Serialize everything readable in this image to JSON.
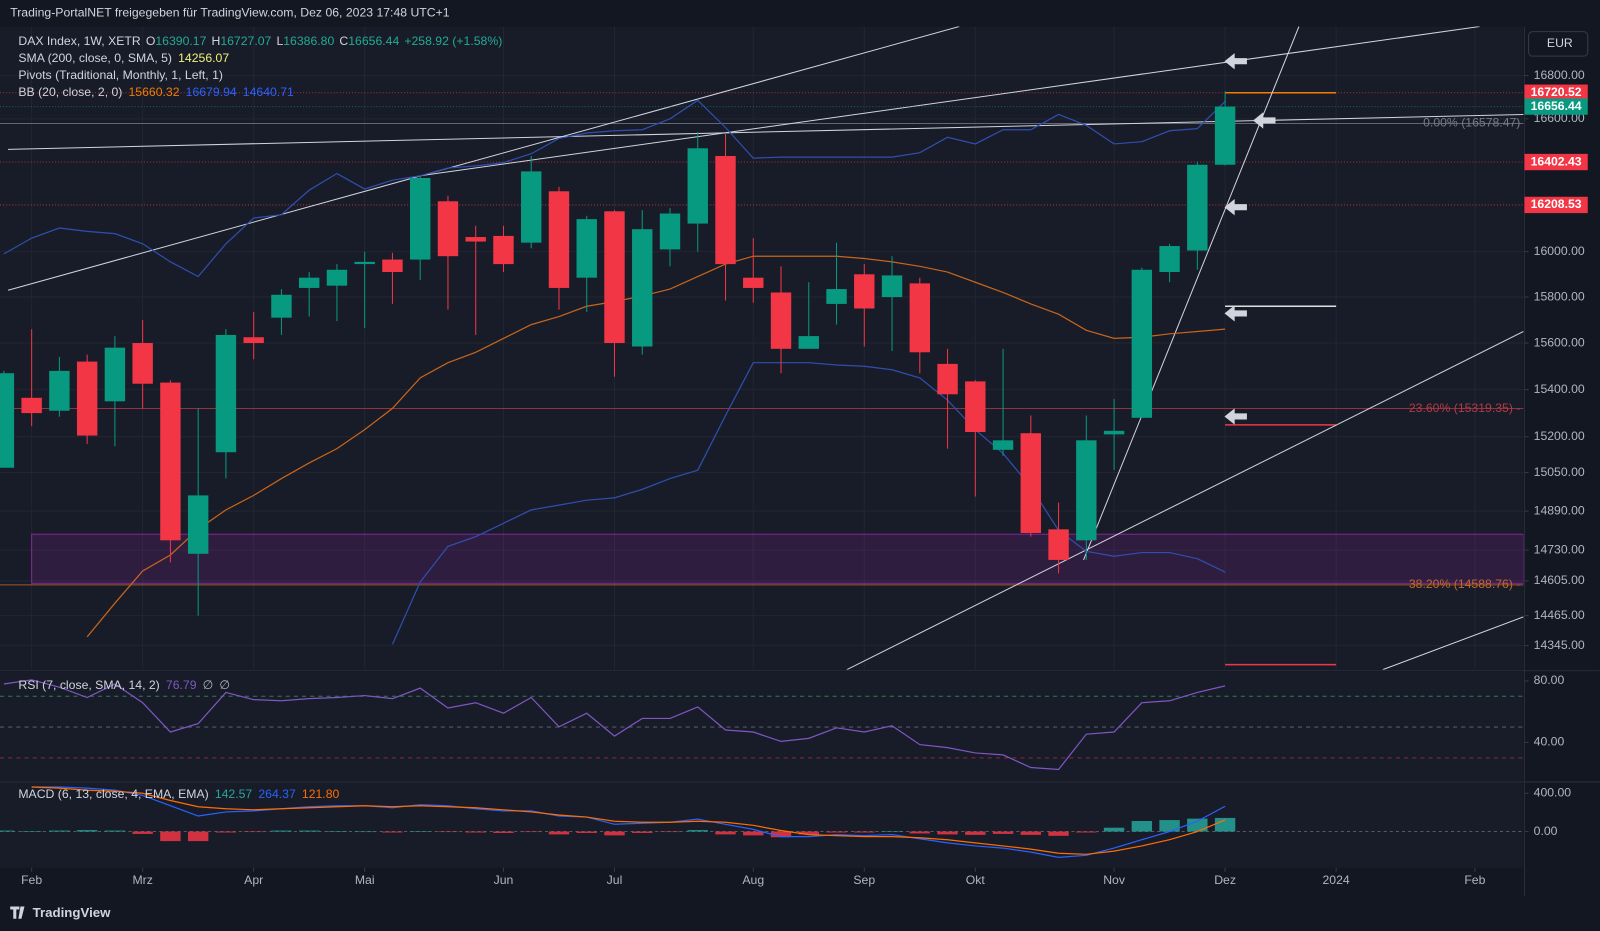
{
  "header": {
    "title": "Trading-PortalNET freigegeben für TradingView.com, Dez 06, 2023 17:48 UTC+1",
    "currency": "EUR",
    "logo": "TradingView"
  },
  "chart_data": [
    {
      "type": "candlestick",
      "symbol": "DAX Index, 1W, XETR",
      "ohlc_legend": [
        {
          "key": "O",
          "value": "16390.17"
        },
        {
          "key": "H",
          "value": "16727.07"
        },
        {
          "key": "L",
          "value": "16386.80"
        },
        {
          "key": "C",
          "value": "16656.44"
        }
      ],
      "change": "+258.92 (+1.58%)",
      "log_scale": true,
      "grid": true,
      "up_color": "#089981",
      "down_color": "#f23645",
      "xlim": [
        -0.14,
        54.75
      ],
      "xticks": [
        {
          "value": 1,
          "label": "Feb"
        },
        {
          "value": 5,
          "label": "Mrz"
        },
        {
          "value": 9,
          "label": "Apr"
        },
        {
          "value": 13,
          "label": "Mai"
        },
        {
          "value": 18,
          "label": "Jun"
        },
        {
          "value": 22,
          "label": "Jul"
        },
        {
          "value": 27,
          "label": "Aug"
        },
        {
          "value": 31,
          "label": "Sep"
        },
        {
          "value": 35,
          "label": "Okt"
        },
        {
          "value": 40,
          "label": "Nov"
        },
        {
          "value": 44,
          "label": "Dez"
        },
        {
          "value": 48,
          "label": "2024"
        },
        {
          "value": 53,
          "label": "Feb"
        }
      ],
      "ylim": [
        14250,
        17030
      ],
      "yticks": [
        {
          "value": 16800,
          "label": "16800.00"
        },
        {
          "value": 16600,
          "label": "16600.00"
        },
        {
          "value": 16000,
          "label": "16000.00"
        },
        {
          "value": 15800,
          "label": "15800.00"
        },
        {
          "value": 15600,
          "label": "15600.00"
        },
        {
          "value": 15400,
          "label": "15400.00"
        },
        {
          "value": 15200,
          "label": "15200.00"
        },
        {
          "value": 15050,
          "label": "15050.00"
        },
        {
          "value": 14890,
          "label": "14890.00"
        },
        {
          "value": 14730,
          "label": "14730.00"
        },
        {
          "value": 14605,
          "label": "14605.00"
        },
        {
          "value": 14465,
          "label": "14465.00"
        },
        {
          "value": 14345,
          "label": "14345.00"
        }
      ],
      "open": [
        15070,
        15365,
        15310,
        15520,
        15350,
        15600,
        15430,
        14715,
        15135,
        15625,
        15710,
        15840,
        15850,
        15945,
        15965,
        15965,
        16225,
        16065,
        16070,
        16040,
        16270,
        15885,
        16180,
        15585,
        16010,
        16125,
        16430,
        15885,
        15820,
        15575,
        15770,
        15900,
        15800,
        15860,
        15510,
        15435,
        15145,
        15215,
        14815,
        14770,
        15210,
        15280,
        15910,
        16005,
        16390.17
      ],
      "high": [
        15480,
        15660,
        15540,
        15550,
        15630,
        15700,
        15440,
        15320,
        15660,
        15735,
        15835,
        15910,
        15945,
        16000,
        15995,
        16340,
        16250,
        16115,
        16115,
        16430,
        16290,
        16160,
        16185,
        16185,
        16195,
        16540,
        16530,
        16060,
        15935,
        15865,
        16040,
        15945,
        15980,
        15885,
        15575,
        15440,
        15575,
        15290,
        14925,
        15290,
        15360,
        15930,
        16035,
        16405,
        16727.07
      ],
      "low": [
        15070,
        15245,
        15285,
        15170,
        15160,
        15320,
        14680,
        14465,
        15025,
        15530,
        15635,
        15715,
        15695,
        15665,
        15770,
        15875,
        15745,
        15635,
        15910,
        16015,
        15745,
        15735,
        15455,
        15550,
        15935,
        16000,
        15785,
        15775,
        15470,
        15575,
        15680,
        15585,
        15565,
        15470,
        15150,
        14950,
        15120,
        14785,
        14635,
        14690,
        15060,
        15280,
        15865,
        15920,
        16386.8
      ],
      "close": [
        15470,
        15300,
        15480,
        15205,
        15580,
        15425,
        14770,
        14955,
        15635,
        15600,
        15810,
        15885,
        15920,
        15955,
        15910,
        16330,
        15980,
        16045,
        15945,
        16360,
        15840,
        16145,
        15600,
        16100,
        16170,
        16465,
        15945,
        15840,
        15575,
        15630,
        15835,
        15750,
        15895,
        15560,
        15380,
        15220,
        15185,
        14800,
        14690,
        15185,
        15225,
        15920,
        16025,
        16390,
        16656.44
      ],
      "indicators": [
        {
          "name": "SMA (200, close, 0, SMA, 5)",
          "legend_values": [
            {
              "text": "14256.07",
              "color": "#f0f07a"
            }
          ],
          "lines": []
        },
        {
          "name": "Pivots (Traditional, Monthly, 1, Left, 1)",
          "legend_values": [],
          "lines": []
        },
        {
          "name": "BB (20, close, 2, 0)",
          "legend_values": [
            {
              "text": "15660.32",
              "color": "#f57c00"
            },
            {
              "text": "16679.94",
              "color": "#2962ff"
            },
            {
              "text": "14640.71",
              "color": "#2962ff"
            }
          ],
          "lines": [
            {
              "color": "#c8651b",
              "values": [
                null,
                null,
                null,
                14380,
                14515,
                14645,
                14710,
                14815,
                14895,
                14955,
                15025,
                15090,
                15150,
                15230,
                15320,
                15450,
                15515,
                15560,
                15620,
                15680,
                15715,
                15760,
                15780,
                15805,
                15835,
                15890,
                15945,
                15980,
                15980,
                15980,
                15980,
                15970,
                15955,
                15935,
                15910,
                15865,
                15820,
                15770,
                15725,
                15655,
                15620,
                15625,
                15640,
                15650,
                15660.32
              ]
            },
            {
              "color": "#2f4fb0",
              "values": [
                15990,
                16060,
                16105,
                16090,
                16080,
                16035,
                15955,
                15890,
                16035,
                16150,
                16165,
                16275,
                16350,
                16280,
                16320,
                16340,
                16375,
                16385,
                16400,
                16440,
                16510,
                16535,
                16545,
                16550,
                16600,
                16685,
                16560,
                16420,
                16425,
                16425,
                16425,
                16425,
                16425,
                16445,
                16515,
                16485,
                16550,
                16550,
                16620,
                16570,
                16485,
                16495,
                16545,
                16555,
                16679.94
              ]
            },
            {
              "color": "#2f4fb0",
              "values": [
                null,
                null,
                null,
                null,
                null,
                null,
                null,
                null,
                null,
                null,
                null,
                null,
                null,
                null,
                14350,
                14600,
                14745,
                14785,
                14840,
                14895,
                14915,
                14935,
                14945,
                14980,
                15025,
                15060,
                15290,
                15515,
                15515,
                15515,
                15505,
                15500,
                15485,
                15450,
                15355,
                15230,
                15130,
                14990,
                14810,
                14725,
                14705,
                14720,
                14720,
                14695,
                14640.71
              ]
            }
          ]
        }
      ],
      "levels": [
        {
          "value": 16720.52,
          "color": "#f23645"
        },
        {
          "value": 16402.43,
          "color": "#f23645"
        },
        {
          "value": 16208.53,
          "color": "#f23645"
        }
      ],
      "pivot_segments": [
        {
          "value": 16720.52,
          "color": "#f57c00"
        },
        {
          "value": 15760,
          "color": "#e0e0e0"
        },
        {
          "value": 15250,
          "color": "#f23645"
        },
        {
          "value": 14270,
          "color": "#f23645"
        }
      ],
      "fib_levels": [
        {
          "value": 16578.47,
          "label": "0.00% (16578.47)",
          "color": "#787b86"
        },
        {
          "value": 15319.35,
          "label": "23.60% (15319.35) -",
          "color": "#b23a44"
        },
        {
          "value": 14588.76,
          "label": "38.20% (14588.76) -",
          "color": "#c0692a"
        }
      ],
      "zone": {
        "low": 14595,
        "high": 14795,
        "start": 1,
        "color": "#9c27b0"
      },
      "trendlines": [
        [
          [
            0.15,
            15830
          ],
          [
            34.42,
            17030
          ]
        ],
        [
          [
            15,
            16340
          ],
          [
            53.17,
            17030
          ]
        ],
        [
          [
            0.15,
            16460
          ],
          [
            54.75,
            16620
          ]
        ],
        [
          [
            38.9,
            14690
          ],
          [
            46.66,
            17030
          ]
        ],
        [
          [
            30.37,
            14250
          ],
          [
            54.75,
            15650
          ]
        ],
        [
          [
            49.68,
            14250
          ],
          [
            54.75,
            14460
          ]
        ]
      ]
    },
    {
      "type": "line",
      "title": "RSI (7, close, SMA, 14, 2)",
      "legend_values": [
        {
          "text": "76.79",
          "color": "#7e57c2"
        },
        {
          "text": "∅",
          "color": "#b2b5be"
        },
        {
          "text": "∅",
          "color": "#b2b5be"
        }
      ],
      "color": "#7e57c2",
      "ylim": [
        15,
        86
      ],
      "yticks": [
        {
          "value": 80,
          "label": "80.00"
        },
        {
          "value": 40,
          "label": "40.00"
        }
      ],
      "bands": [
        {
          "value": 70,
          "color": "#2f7d55"
        },
        {
          "value": 50,
          "color": "#555a66"
        },
        {
          "value": 30,
          "color": "#8a2a36"
        }
      ],
      "values": [
        78.0,
        80.7,
        75.9,
        69.2,
        78.0,
        65.8,
        46.8,
        52.2,
        72.5,
        67.8,
        67.1,
        68.5,
        69.2,
        70.5,
        68.5,
        75.3,
        62.4,
        65.8,
        59.0,
        69.2,
        50.2,
        59.0,
        44.1,
        55.6,
        55.6,
        63.1,
        48.1,
        46.8,
        40.7,
        42.7,
        49.5,
        46.8,
        50.8,
        38.6,
        36.6,
        33.2,
        31.9,
        23.7,
        22.4,
        45.4,
        46.8,
        65.8,
        67.1,
        72.5,
        76.79
      ]
    },
    {
      "type": "macd",
      "title": "MACD (6, 13, close, 4, EMA, EMA)",
      "legend_values": [
        {
          "text": "142.57",
          "color": "#26a69a"
        },
        {
          "text": "264.37",
          "color": "#2962ff"
        },
        {
          "text": "121.80",
          "color": "#ff6d00"
        }
      ],
      "ylim": [
        -378,
        508
      ],
      "yticks": [
        {
          "value": 400,
          "label": "400.00"
        },
        {
          "value": 0,
          "label": "0.00"
        }
      ],
      "histogram": {
        "up_color": "#26a69a",
        "down_color": "#f23645",
        "values": [
          10,
          5,
          10,
          15,
          10,
          -25,
          -100,
          -100,
          -10,
          -5,
          10,
          10,
          5,
          0,
          -10,
          5,
          -5,
          -10,
          -15,
          -5,
          -30,
          -15,
          -40,
          -15,
          -5,
          15,
          -30,
          -40,
          -60,
          -30,
          -10,
          -10,
          5,
          -20,
          -30,
          -35,
          -25,
          -35,
          -45,
          -10,
          40,
          110,
          120,
          135,
          142.57
        ]
      },
      "series": [
        {
          "color": "#2962ff",
          "values": [
            null,
            465,
            465,
            454,
            432,
            378,
            270,
            162,
            205,
            216,
            238,
            259,
            270,
            270,
            249,
            281,
            270,
            238,
            216,
            216,
            162,
            151,
            76,
            86,
            97,
            130,
            76,
            22,
            -54,
            -54,
            -32,
            -43,
            -32,
            -76,
            -119,
            -151,
            -173,
            -216,
            -270,
            -249,
            -173,
            -86,
            0,
            108,
            264.37
          ]
        },
        {
          "color": "#ff6d00",
          "values": [
            null,
            465,
            454,
            432,
            422,
            400,
            324,
            259,
            238,
            227,
            238,
            249,
            259,
            270,
            259,
            270,
            259,
            249,
            227,
            205,
            173,
            151,
            108,
            97,
            97,
            108,
            97,
            65,
            11,
            -32,
            -43,
            -54,
            -54,
            -65,
            -86,
            -119,
            -151,
            -184,
            -227,
            -238,
            -205,
            -151,
            -86,
            0,
            121.8
          ]
        }
      ]
    }
  ]
}
